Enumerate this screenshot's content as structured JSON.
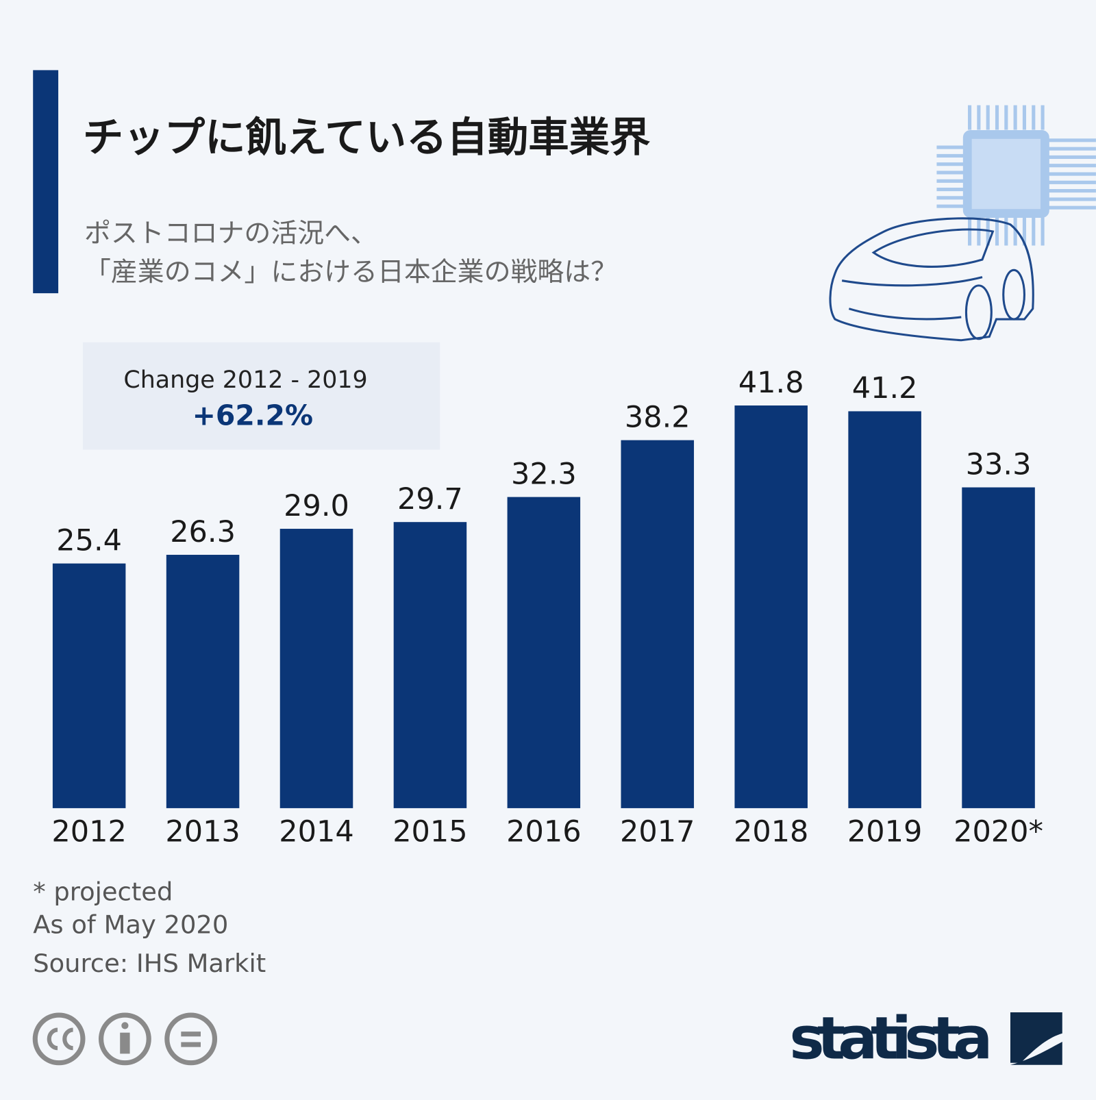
{
  "chart_data": {
    "type": "bar",
    "title": "チップに飢えている自動車業界",
    "subtitle": [
      "ポストコロナの活況へ、",
      "「産業のコメ」における日本企業の戦略は？"
    ],
    "annotation": {
      "label": "Change 2012 - 2019",
      "value": "+62.2%"
    },
    "categories": [
      "2012",
      "2013",
      "2014",
      "2015",
      "2016",
      "2017",
      "2018",
      "2019",
      "2020*"
    ],
    "values": [
      25.4,
      26.3,
      29.0,
      29.7,
      32.3,
      38.2,
      41.8,
      41.2,
      33.3
    ],
    "value_labels": [
      "25.4",
      "26.3",
      "29.0",
      "29.7",
      "32.3",
      "38.2",
      "41.8",
      "41.2",
      "33.3"
    ],
    "color": "#0b3677",
    "notes": [
      "* projected",
      "As of May 2020",
      "Source: IHS Markit"
    ],
    "brand": "statista"
  }
}
